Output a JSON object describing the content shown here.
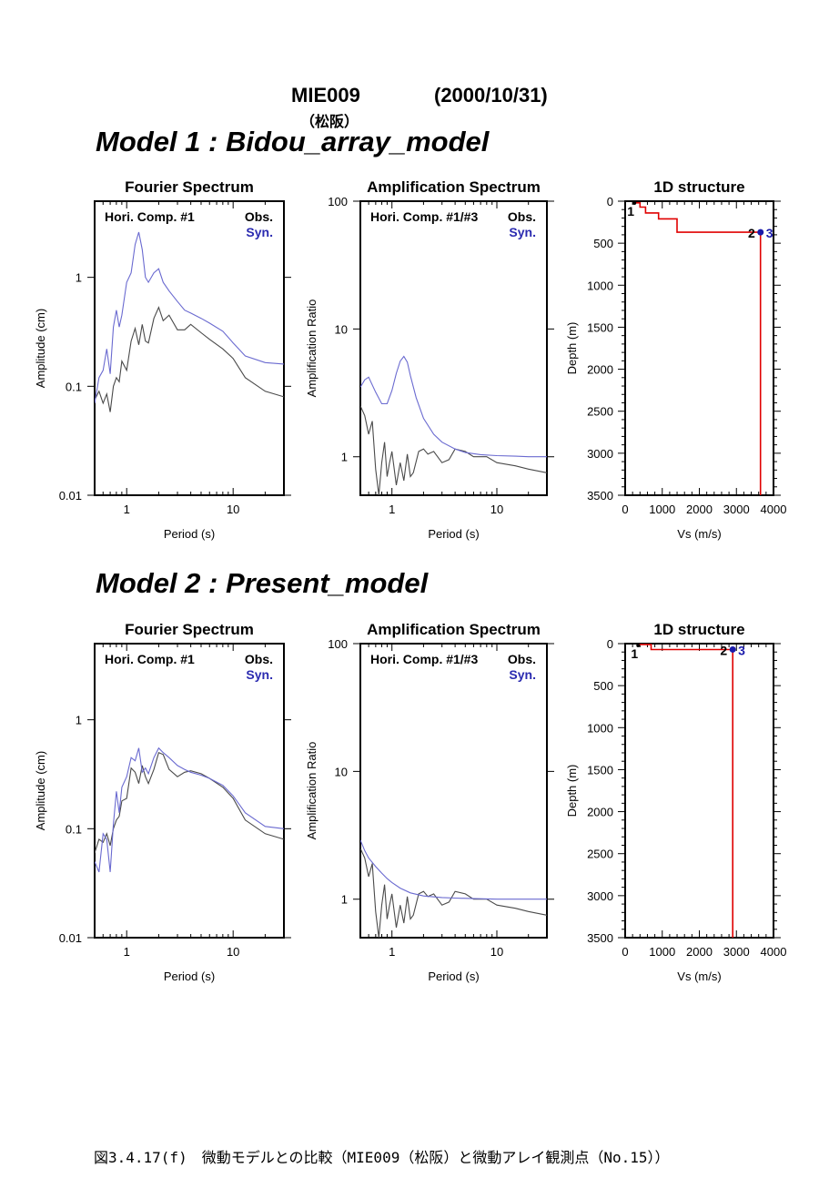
{
  "header": {
    "station": "MIE009",
    "date": "(2000/10/31)",
    "place": "（松阪）"
  },
  "caption": "図3.4.17(f)　微動モデルとの比較（MIE009（松阪）と微動アレイ観測点（No.15））",
  "colors": {
    "obs": "#4a4a4a",
    "syn": "#6a6ad0",
    "syn_label": "#2a2ab0",
    "structure": "#e00000",
    "marker": "#1a1aaa"
  },
  "models": [
    {
      "title": "Model 1 : Bidou_array_model",
      "fourier": {
        "title": "Fourier Spectrum",
        "comp_label": "Hori. Comp. #1",
        "obs_label": "Obs.",
        "syn_label": "Syn.",
        "xlabel": "Period (s)",
        "ylabel": "Amplitude (cm)",
        "xticks": [
          "1",
          "10"
        ],
        "yticks": [
          "0.01",
          "0.1",
          "1"
        ]
      },
      "amp": {
        "title": "Amplification Spectrum",
        "comp_label": "Hori. Comp. #1/#3",
        "obs_label": "Obs.",
        "syn_label": "Syn.",
        "xlabel": "Period (s)",
        "ylabel": "Amplification Ratio",
        "xticks": [
          "1",
          "10"
        ],
        "yticks": [
          "1",
          "10",
          "100"
        ]
      },
      "structure": {
        "title": "1D structure",
        "xlabel": "Vs (m/s)",
        "ylabel": "Depth (m)",
        "xticks": [
          "0",
          "1000",
          "2000",
          "3000",
          "4000"
        ],
        "yticks": [
          "0",
          "500",
          "1000",
          "1500",
          "2000",
          "2500",
          "3000",
          "3500"
        ],
        "labels": [
          "1",
          "2",
          "3"
        ]
      }
    },
    {
      "title": "Model 2 : Present_model",
      "fourier": {
        "title": "Fourier Spectrum",
        "comp_label": "Hori. Comp. #1",
        "obs_label": "Obs.",
        "syn_label": "Syn.",
        "xlabel": "Period (s)",
        "ylabel": "Amplitude (cm)",
        "xticks": [
          "1",
          "10"
        ],
        "yticks": [
          "0.01",
          "0.1",
          "1"
        ]
      },
      "amp": {
        "title": "Amplification Spectrum",
        "comp_label": "Hori. Comp. #1/#3",
        "obs_label": "Obs.",
        "syn_label": "Syn.",
        "xlabel": "Period (s)",
        "ylabel": "Amplification Ratio",
        "xticks": [
          "1",
          "10"
        ],
        "yticks": [
          "1",
          "10",
          "100"
        ]
      },
      "structure": {
        "title": "1D structure",
        "xlabel": "Vs (m/s)",
        "ylabel": "Depth (m)",
        "xticks": [
          "0",
          "1000",
          "2000",
          "3000",
          "4000"
        ],
        "yticks": [
          "0",
          "500",
          "1000",
          "1500",
          "2000",
          "2500",
          "3000",
          "3500"
        ],
        "labels": [
          "1",
          "2",
          "3"
        ]
      }
    }
  ],
  "chart_data": [
    {
      "type": "line",
      "title": "Fourier Spectrum",
      "model": "Model 1 : Bidou_array_model",
      "xlabel": "Period (s)",
      "ylabel": "Amplitude (cm)",
      "xscale": "log",
      "yscale": "log",
      "xlim": [
        0.5,
        30
      ],
      "ylim": [
        0.01,
        5
      ],
      "series": [
        {
          "name": "Obs.",
          "x": [
            0.5,
            0.55,
            0.6,
            0.65,
            0.7,
            0.75,
            0.8,
            0.85,
            0.9,
            1.0,
            1.1,
            1.2,
            1.3,
            1.4,
            1.5,
            1.6,
            1.8,
            2.0,
            2.2,
            2.5,
            3.0,
            3.5,
            4.0,
            5.0,
            6.0,
            8.0,
            10,
            13,
            20,
            30
          ],
          "y": [
            0.075,
            0.09,
            0.07,
            0.085,
            0.058,
            0.1,
            0.12,
            0.11,
            0.17,
            0.14,
            0.26,
            0.34,
            0.24,
            0.37,
            0.26,
            0.25,
            0.42,
            0.53,
            0.4,
            0.45,
            0.33,
            0.33,
            0.37,
            0.31,
            0.27,
            0.22,
            0.18,
            0.12,
            0.09,
            0.08
          ]
        },
        {
          "name": "Syn.",
          "x": [
            0.5,
            0.55,
            0.6,
            0.65,
            0.7,
            0.75,
            0.8,
            0.85,
            0.9,
            1.0,
            1.1,
            1.2,
            1.3,
            1.4,
            1.5,
            1.6,
            1.8,
            2.0,
            2.2,
            2.5,
            3.0,
            3.5,
            4.0,
            5.0,
            6.0,
            8.0,
            10,
            13,
            20,
            30
          ],
          "y": [
            0.07,
            0.12,
            0.14,
            0.22,
            0.13,
            0.35,
            0.5,
            0.35,
            0.45,
            0.9,
            1.1,
            2.0,
            2.6,
            1.8,
            1.0,
            0.9,
            1.1,
            1.2,
            0.9,
            0.75,
            0.6,
            0.5,
            0.47,
            0.42,
            0.38,
            0.32,
            0.25,
            0.19,
            0.165,
            0.16
          ]
        }
      ]
    },
    {
      "type": "line",
      "title": "Amplification Spectrum",
      "model": "Model 1 : Bidou_array_model",
      "xlabel": "Period (s)",
      "ylabel": "Amplification Ratio",
      "xscale": "log",
      "yscale": "log",
      "xlim": [
        0.5,
        30
      ],
      "ylim": [
        0.5,
        100
      ],
      "series": [
        {
          "name": "Obs.",
          "x": [
            0.5,
            0.55,
            0.6,
            0.65,
            0.7,
            0.75,
            0.8,
            0.85,
            0.9,
            0.95,
            1.0,
            1.1,
            1.2,
            1.3,
            1.4,
            1.5,
            1.6,
            1.8,
            2.0,
            2.2,
            2.5,
            3.0,
            3.5,
            4.0,
            5.0,
            6.0,
            8.0,
            10,
            15,
            20,
            30
          ],
          "y": [
            2.5,
            2.1,
            1.5,
            1.9,
            0.8,
            0.5,
            0.9,
            1.3,
            0.7,
            0.9,
            1.1,
            0.6,
            0.9,
            0.65,
            1.05,
            0.7,
            0.75,
            1.1,
            1.15,
            1.05,
            1.1,
            0.9,
            0.95,
            1.15,
            1.1,
            1.0,
            1.0,
            0.9,
            0.85,
            0.8,
            0.75
          ]
        },
        {
          "name": "Syn.",
          "x": [
            0.5,
            0.55,
            0.6,
            0.7,
            0.8,
            0.9,
            1.0,
            1.1,
            1.2,
            1.3,
            1.4,
            1.5,
            1.7,
            2.0,
            2.5,
            3.0,
            4.0,
            5.0,
            7.0,
            10,
            15,
            20,
            30
          ],
          "y": [
            3.5,
            4.0,
            4.2,
            3.2,
            2.6,
            2.6,
            3.3,
            4.5,
            5.6,
            6.1,
            5.5,
            4.3,
            2.9,
            2.0,
            1.5,
            1.3,
            1.15,
            1.08,
            1.04,
            1.02,
            1.01,
            1.0,
            1.0
          ]
        }
      ]
    },
    {
      "type": "line",
      "title": "1D structure",
      "model": "Model 1 : Bidou_array_model",
      "xlabel": "Vs (m/s)",
      "ylabel": "Depth (m)",
      "xlim": [
        0,
        4000
      ],
      "ylim": [
        0,
        3500
      ],
      "series": [
        {
          "name": "Vs",
          "points": [
            [
              250,
              0
            ],
            [
              250,
              20
            ],
            [
              400,
              20
            ],
            [
              400,
              70
            ],
            [
              550,
              70
            ],
            [
              550,
              140
            ],
            [
              900,
              140
            ],
            [
              900,
              210
            ],
            [
              1400,
              210
            ],
            [
              1400,
              370
            ],
            [
              3650,
              370
            ],
            [
              3650,
              3500
            ]
          ]
        }
      ]
    },
    {
      "type": "line",
      "title": "Fourier Spectrum",
      "model": "Model 2 : Present_model",
      "xlabel": "Period (s)",
      "ylabel": "Amplitude (cm)",
      "xscale": "log",
      "yscale": "log",
      "xlim": [
        0.5,
        30
      ],
      "ylim": [
        0.01,
        5
      ],
      "series": [
        {
          "name": "Obs.",
          "x": [
            0.5,
            0.55,
            0.6,
            0.65,
            0.7,
            0.75,
            0.8,
            0.85,
            0.9,
            1.0,
            1.1,
            1.2,
            1.3,
            1.4,
            1.5,
            1.6,
            1.8,
            2.0,
            2.2,
            2.5,
            3.0,
            3.5,
            4.0,
            5.0,
            6.0,
            8.0,
            10,
            13,
            20,
            30
          ],
          "y": [
            0.06,
            0.08,
            0.075,
            0.09,
            0.07,
            0.1,
            0.12,
            0.13,
            0.18,
            0.19,
            0.36,
            0.33,
            0.26,
            0.38,
            0.3,
            0.26,
            0.35,
            0.5,
            0.48,
            0.35,
            0.3,
            0.33,
            0.34,
            0.32,
            0.29,
            0.24,
            0.19,
            0.12,
            0.09,
            0.08
          ]
        },
        {
          "name": "Syn.",
          "x": [
            0.5,
            0.55,
            0.6,
            0.65,
            0.7,
            0.75,
            0.8,
            0.85,
            0.9,
            1.0,
            1.1,
            1.2,
            1.3,
            1.4,
            1.5,
            1.6,
            1.8,
            2.0,
            2.2,
            2.5,
            3.0,
            3.5,
            4.0,
            5.0,
            6.0,
            8.0,
            10,
            13,
            20,
            30
          ],
          "y": [
            0.05,
            0.04,
            0.09,
            0.08,
            0.04,
            0.11,
            0.22,
            0.14,
            0.24,
            0.3,
            0.45,
            0.42,
            0.55,
            0.33,
            0.36,
            0.32,
            0.45,
            0.55,
            0.5,
            0.45,
            0.38,
            0.35,
            0.33,
            0.31,
            0.29,
            0.25,
            0.2,
            0.14,
            0.105,
            0.1
          ]
        }
      ]
    },
    {
      "type": "line",
      "title": "Amplification Spectrum",
      "model": "Model 2 : Present_model",
      "xlabel": "Period (s)",
      "ylabel": "Amplification Ratio",
      "xscale": "log",
      "yscale": "log",
      "xlim": [
        0.5,
        30
      ],
      "ylim": [
        0.5,
        100
      ],
      "series": [
        {
          "name": "Obs.",
          "x": [
            0.5,
            0.55,
            0.6,
            0.65,
            0.7,
            0.75,
            0.8,
            0.85,
            0.9,
            0.95,
            1.0,
            1.1,
            1.2,
            1.3,
            1.4,
            1.5,
            1.6,
            1.8,
            2.0,
            2.2,
            2.5,
            3.0,
            3.5,
            4.0,
            5.0,
            6.0,
            8.0,
            10,
            15,
            20,
            30
          ],
          "y": [
            2.5,
            2.1,
            1.5,
            1.9,
            0.8,
            0.5,
            0.9,
            1.3,
            0.7,
            0.9,
            1.1,
            0.6,
            0.9,
            0.65,
            1.05,
            0.7,
            0.75,
            1.1,
            1.15,
            1.05,
            1.1,
            0.9,
            0.95,
            1.15,
            1.1,
            1.0,
            1.0,
            0.9,
            0.85,
            0.8,
            0.75
          ]
        },
        {
          "name": "Syn.",
          "x": [
            0.5,
            0.55,
            0.6,
            0.7,
            0.8,
            0.9,
            1.0,
            1.2,
            1.5,
            2.0,
            3.0,
            4.0,
            6.0,
            10,
            15,
            20,
            30
          ],
          "y": [
            2.9,
            2.4,
            2.1,
            1.8,
            1.6,
            1.45,
            1.35,
            1.22,
            1.12,
            1.06,
            1.03,
            1.02,
            1.01,
            1.0,
            1.0,
            1.0,
            1.0
          ]
        }
      ]
    },
    {
      "type": "line",
      "title": "1D structure",
      "model": "Model 2 : Present_model",
      "xlabel": "Vs (m/s)",
      "ylabel": "Depth (m)",
      "xlim": [
        0,
        4000
      ],
      "ylim": [
        0,
        3500
      ],
      "series": [
        {
          "name": "Vs",
          "points": [
            [
              350,
              0
            ],
            [
              350,
              10
            ],
            [
              700,
              10
            ],
            [
              700,
              70
            ],
            [
              2900,
              70
            ],
            [
              2900,
              3500
            ]
          ]
        }
      ]
    }
  ]
}
